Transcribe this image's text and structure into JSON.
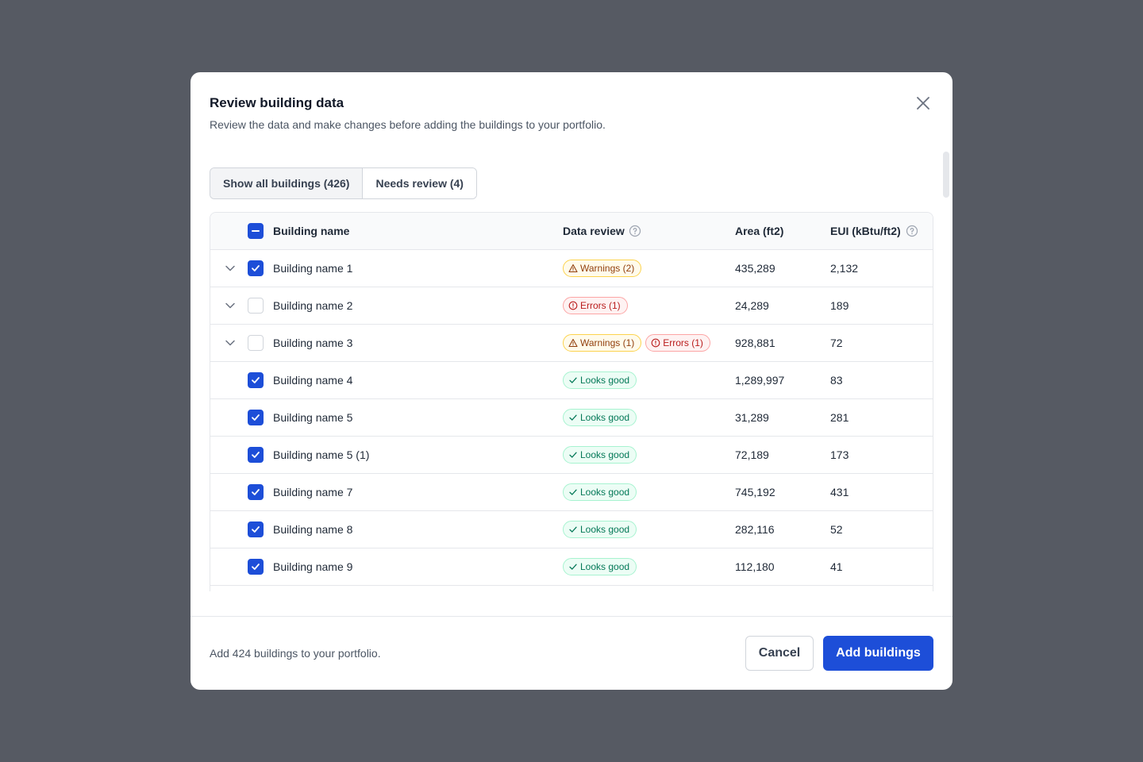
{
  "modal": {
    "title": "Review building data",
    "subtitle": "Review the data and make changes before adding the buildings to your portfolio."
  },
  "tabs": [
    {
      "label": "Show all buildings (426)",
      "active": true
    },
    {
      "label": "Needs review (4)",
      "active": false
    }
  ],
  "table": {
    "headers": {
      "name": "Building name",
      "review": "Data review",
      "area": "Area (ft2)",
      "eui": "EUI (kBtu/ft2)"
    },
    "header_checkbox": "indeterminate",
    "rows": [
      {
        "name": "Building name 1",
        "checked": true,
        "expandable": true,
        "badges": [
          {
            "type": "warn",
            "label": "Warnings (2)"
          }
        ],
        "area": "435,289",
        "eui": "2,132"
      },
      {
        "name": "Building name 2",
        "checked": false,
        "expandable": true,
        "badges": [
          {
            "type": "err",
            "label": "Errors (1)"
          }
        ],
        "area": "24,289",
        "eui": "189"
      },
      {
        "name": "Building name 3",
        "checked": false,
        "expandable": true,
        "badges": [
          {
            "type": "warn",
            "label": "Warnings (1)"
          },
          {
            "type": "err",
            "label": "Errors (1)"
          }
        ],
        "area": "928,881",
        "eui": "72"
      },
      {
        "name": "Building name 4",
        "checked": true,
        "expandable": false,
        "badges": [
          {
            "type": "good",
            "label": "Looks good"
          }
        ],
        "area": "1,289,997",
        "eui": "83"
      },
      {
        "name": "Building name 5",
        "checked": true,
        "expandable": false,
        "badges": [
          {
            "type": "good",
            "label": "Looks good"
          }
        ],
        "area": "31,289",
        "eui": "281"
      },
      {
        "name": "Building name 5 (1)",
        "checked": true,
        "expandable": false,
        "badges": [
          {
            "type": "good",
            "label": "Looks good"
          }
        ],
        "area": "72,189",
        "eui": "173"
      },
      {
        "name": "Building name 7",
        "checked": true,
        "expandable": false,
        "badges": [
          {
            "type": "good",
            "label": "Looks good"
          }
        ],
        "area": "745,192",
        "eui": "431"
      },
      {
        "name": "Building name 8",
        "checked": true,
        "expandable": false,
        "badges": [
          {
            "type": "good",
            "label": "Looks good"
          }
        ],
        "area": "282,116",
        "eui": "52"
      },
      {
        "name": "Building name 9",
        "checked": true,
        "expandable": false,
        "badges": [
          {
            "type": "good",
            "label": "Looks good"
          }
        ],
        "area": "112,180",
        "eui": "41"
      }
    ]
  },
  "footer": {
    "summary": "Add 424 buildings to your portfolio.",
    "cancel_label": "Cancel",
    "primary_label": "Add buildings"
  },
  "colors": {
    "backdrop": "#565a63",
    "primary": "#1d4ed8",
    "warning": "#92400e",
    "error": "#b91c1c",
    "success": "#047857"
  },
  "icons": {
    "close": "close-icon",
    "help": "help-circle-icon",
    "chevron": "chevron-down-icon",
    "check": "check-icon",
    "warning": "warning-triangle-icon",
    "error": "error-circle-icon"
  }
}
